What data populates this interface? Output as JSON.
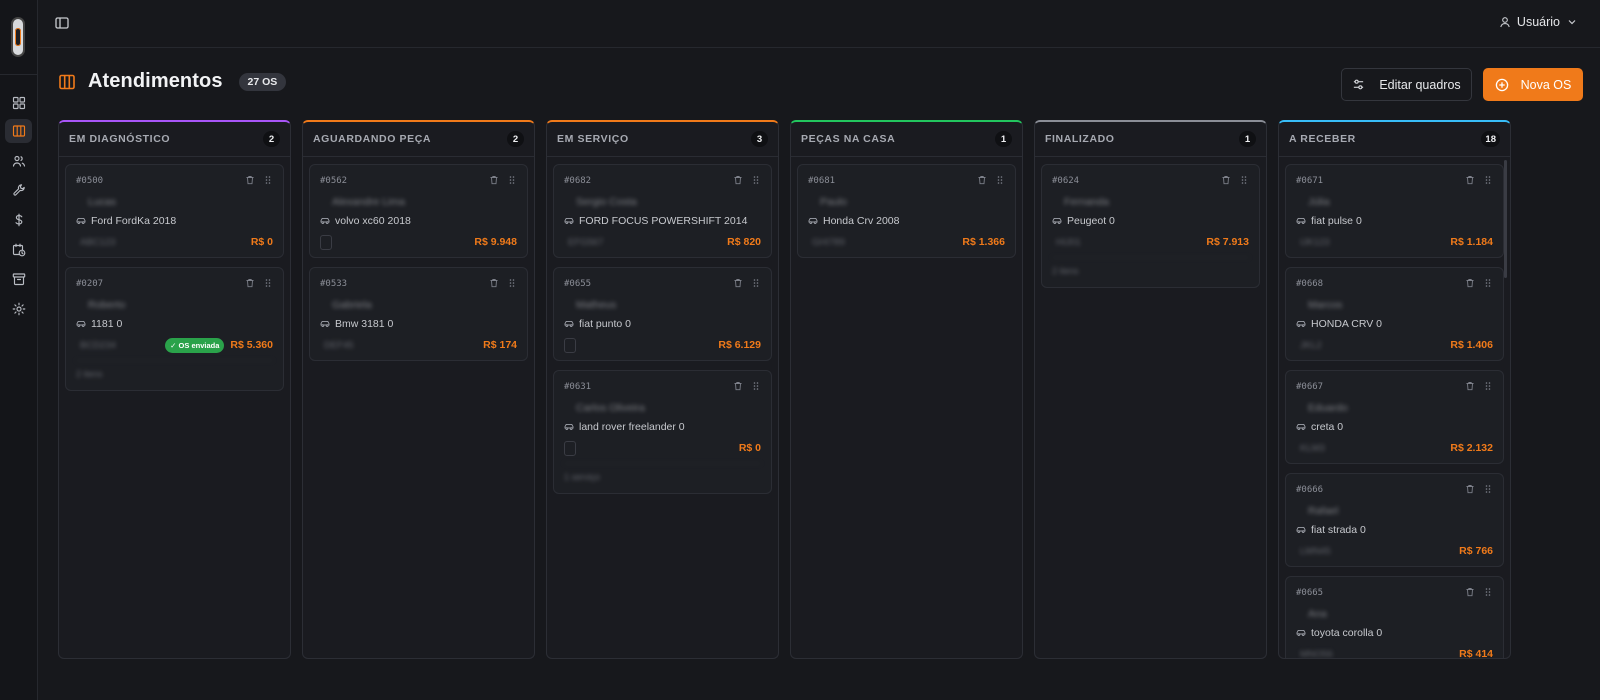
{
  "sidebar": {
    "items": [
      {
        "icon": "dashboard-icon",
        "active": false
      },
      {
        "icon": "kanban-icon",
        "active": true
      },
      {
        "icon": "users-icon",
        "active": false
      },
      {
        "icon": "wrench-icon",
        "active": false
      },
      {
        "icon": "dollar-icon",
        "active": false
      },
      {
        "icon": "calendar-clock-icon",
        "active": false
      },
      {
        "icon": "archive-icon",
        "active": false
      },
      {
        "icon": "gear-icon",
        "active": false
      }
    ]
  },
  "header": {
    "user_label": "Usuário"
  },
  "page": {
    "title": "Atendimentos",
    "count_badge": "27 OS",
    "edit_button": "Editar quadros",
    "new_button": "Nova OS"
  },
  "colors": {
    "accent": "#f07a1a",
    "success": "#2aa24a"
  },
  "columns": [
    {
      "title": "EM DIAGNÓSTICO",
      "count": "2",
      "color": "#a855f7",
      "cards": [
        {
          "id": "#0500",
          "client": "Lucas",
          "vehicle": "Ford FordKa 2018",
          "plate": "ABC123",
          "price": "R$ 0",
          "badge": "",
          "extra": ""
        },
        {
          "id": "#0207",
          "client": "Roberto",
          "vehicle": "1181 0",
          "plate": "BCD234",
          "price": "R$ 5.360",
          "badge": "✓ OS enviada",
          "extra": "2 itens"
        }
      ]
    },
    {
      "title": "AGUARDANDO PEÇA",
      "count": "2",
      "color": "#f07a1a",
      "cards": [
        {
          "id": "#0562",
          "client": "Alexandre Lima",
          "vehicle": "volvo xc60 2018",
          "plate": "",
          "price": "R$ 9.948",
          "badge": "",
          "extra": ""
        },
        {
          "id": "#0533",
          "client": "Gabriela",
          "vehicle": "Bmw 3181 0",
          "plate": "DEF45",
          "price": "R$ 174",
          "badge": "",
          "extra": ""
        }
      ]
    },
    {
      "title": "EM SERVIÇO",
      "count": "3",
      "color": "#f07a1a",
      "cards": [
        {
          "id": "#0682",
          "client": "Sergio Costa",
          "vehicle": "FORD FOCUS POWERSHIFT 2014",
          "plate": "EFG567",
          "price": "R$ 820",
          "badge": "",
          "extra": ""
        },
        {
          "id": "#0655",
          "client": "Matheus",
          "vehicle": "fiat punto 0",
          "plate": "",
          "price": "R$ 6.129",
          "badge": "",
          "extra": ""
        },
        {
          "id": "#0631",
          "client": "Carlos Oliveira",
          "vehicle": "land rover freelander 0",
          "plate": "",
          "price": "R$ 0",
          "badge": "",
          "extra": "1 serviço"
        }
      ]
    },
    {
      "title": "PEÇAS NA CASA",
      "count": "1",
      "color": "#22c55e",
      "cards": [
        {
          "id": "#0681",
          "client": "Paulo",
          "vehicle": "Honda Crv 2008",
          "plate": "GHI789",
          "price": "R$ 1.366",
          "badge": "",
          "extra": ""
        }
      ]
    },
    {
      "title": "FINALIZADO",
      "count": "1",
      "color": "#8b8e97",
      "cards": [
        {
          "id": "#0624",
          "client": "Fernanda",
          "vehicle": "Peugeot 0",
          "plate": "HIJ01",
          "price": "R$ 7.913",
          "badge": "",
          "extra": "2 itens"
        }
      ]
    },
    {
      "title": "A RECEBER",
      "count": "18",
      "color": "#38bdf8",
      "cards": [
        {
          "id": "#0671",
          "client": "Júlia",
          "vehicle": "fiat pulse 0",
          "plate": "IJK123",
          "price": "R$ 1.184",
          "badge": "",
          "extra": ""
        },
        {
          "id": "#0668",
          "client": "Marcos",
          "vehicle": "HONDA CRV 0",
          "plate": "JKL2",
          "price": "R$ 1.406",
          "badge": "",
          "extra": ""
        },
        {
          "id": "#0667",
          "client": "Eduardo",
          "vehicle": "creta 0",
          "plate": "KLM3",
          "price": "R$ 2.132",
          "badge": "",
          "extra": ""
        },
        {
          "id": "#0666",
          "client": "Rafael",
          "vehicle": "fiat strada 0",
          "plate": "LMN45",
          "price": "R$ 766",
          "badge": "",
          "extra": ""
        },
        {
          "id": "#0665",
          "client": "Ana",
          "vehicle": "toyota corolla 0",
          "plate": "MNO56",
          "price": "R$ 414",
          "badge": "",
          "extra": ""
        }
      ]
    }
  ]
}
